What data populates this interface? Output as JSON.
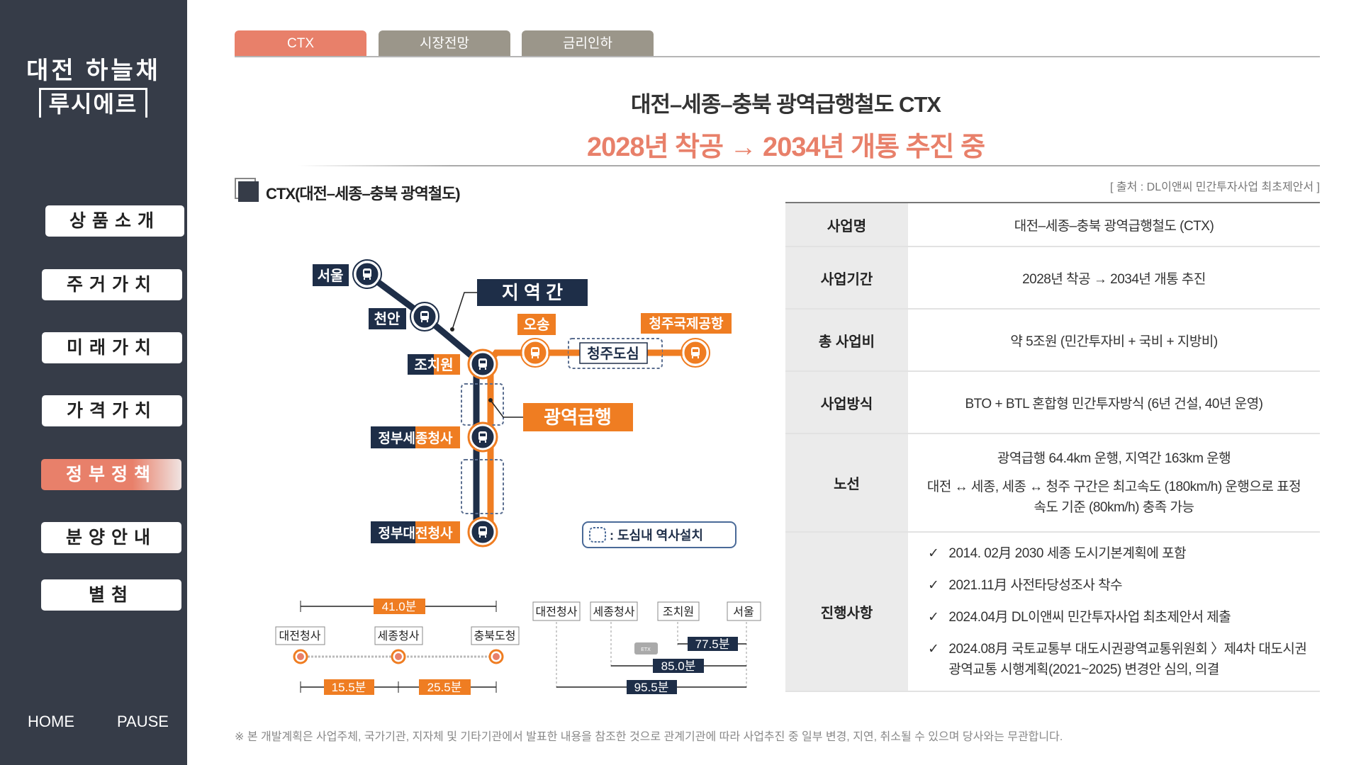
{
  "sidebar": {
    "brand_line1": "대전 하늘채",
    "brand_line2": "루시에르",
    "items": [
      {
        "label": "상품소개"
      },
      {
        "label": "주거가치"
      },
      {
        "label": "미래가치"
      },
      {
        "label": "가격가치"
      },
      {
        "label": "정부정책"
      },
      {
        "label": "분양안내"
      },
      {
        "label": "별첨"
      }
    ],
    "active_index": 4,
    "home": "HOME",
    "pause": "PAUSE"
  },
  "tabs": [
    {
      "label": "CTX"
    },
    {
      "label": "시장전망"
    },
    {
      "label": "금리인하"
    }
  ],
  "header": {
    "title": "대전–세종–충북 광역급행철도 CTX",
    "subtitle": "2028년 착공 → 2034년 개통 추진 중"
  },
  "section": {
    "title": "CTX(대전–세종–충북 광역철도)",
    "source": "[ 출처 : DL이앤씨 민간투자사업 최초제안서 ]"
  },
  "map": {
    "stations": {
      "seoul": "서울",
      "cheonan": "천안",
      "jochiwon": "조치원",
      "sejong": "정부세종청사",
      "daejeon": "정부대전청사",
      "osong": "오송",
      "airport": "청주국제공항",
      "cheongju": "청주도심"
    },
    "tag_regional": "지 역 간",
    "tag_express": "광역급행",
    "legend": ": 도심내 역사설치"
  },
  "timing": {
    "left": {
      "stops": [
        "대전청사",
        "세종청사",
        "충북도청"
      ],
      "total": "41.0분",
      "seg1": "15.5분",
      "seg2": "25.5분"
    },
    "right": {
      "stops": [
        "대전청사",
        "세종청사",
        "조치원",
        "서울"
      ],
      "t1": "77.5분",
      "t2": "85.0분",
      "t3": "95.5분",
      "badge": "ETX"
    }
  },
  "table": {
    "rows": [
      {
        "label": "사업명",
        "lines": [
          "대전–세종–충북 광역급행철도 (CTX)"
        ]
      },
      {
        "label": "사업기간",
        "lines": [
          "2028년 착공 → 2034년 개통 추진"
        ]
      },
      {
        "label": "총 사업비",
        "lines": [
          "약 5조원 (민간투자비 + 국비 + 지방비)"
        ]
      },
      {
        "label": "사업방식",
        "lines": [
          "BTO + BTL 혼합형 민간투자방식 (6년 건설, 40년 운영)"
        ]
      },
      {
        "label": "노선",
        "lines": [
          "광역급행 64.4km 운행, 지역간 163km 운행",
          "대전 ↔ 세종, 세종 ↔ 청주 구간은 최고속도 (180km/h) 운행으로 표정 속도 기준 (80km/h) 충족 가능"
        ]
      },
      {
        "label": "진행사항",
        "checks": [
          "2014. 02月 2030 세종 도시기본계획에 포함",
          "2021.11月 사전타당성조사 착수",
          "2024.04月 DL이앤씨 민간투자사업 최초제안서 제출",
          "2024.08月 국토교통부 대도시권광역교통위원회 〉제4차 대도시권 광역교통 시행계획(2021~2025) 변경안 심의, 의결"
        ]
      }
    ]
  },
  "check_mark": "✓",
  "footnote": "※ 본 개발계획은 사업주체, 국가기관, 지자체 및 기타기관에서 발표한 내용을 참조한 것으로 관계기관에 따라 사업추진 중 일부 변경, 지연, 취소될 수 있으며 당사와는 무관합니다.",
  "colors": {
    "sidebar": "#363c48",
    "accent": "#e8806a",
    "tab_inactive": "#9b968a",
    "navy": "#1e2e48",
    "orange": "#ef7d22"
  }
}
